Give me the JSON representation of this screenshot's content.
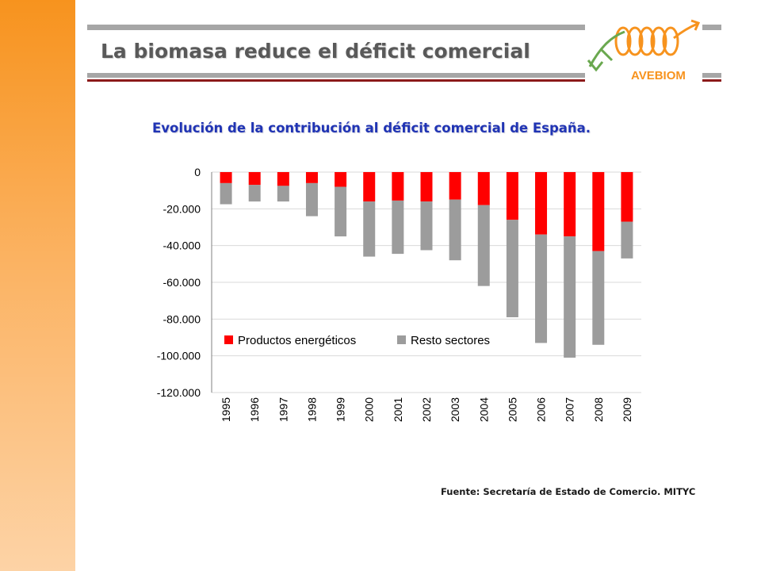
{
  "slide": {
    "title": "La biomasa reduce el déficit comercial",
    "logo_text": "AVEBIOM",
    "source": "Fuente: Secretaría de Estado de Comercio. MITYC"
  },
  "colors": {
    "sidebar": "#f7931e",
    "accent_red": "#8b1a1a",
    "heading_blue": "#2034b4",
    "series_energy": "#ff0000",
    "series_rest": "#9c9c9c",
    "logo_orange": "#f7931e",
    "logo_green": "#6aa84f"
  },
  "chart_data": {
    "type": "bar",
    "stacked": true,
    "title": "Evolución de la contribución al déficit comercial de España.",
    "categories": [
      "1995",
      "1996",
      "1997",
      "1998",
      "1999",
      "2000",
      "2001",
      "2002",
      "2003",
      "2004",
      "2005",
      "2006",
      "2007",
      "2008",
      "2009"
    ],
    "series": [
      {
        "name": "Productos energéticos",
        "color": "#ff0000",
        "values": [
          -6000,
          -7000,
          -7500,
          -6000,
          -8000,
          -16000,
          -15500,
          -16000,
          -15000,
          -18000,
          -26000,
          -34000,
          -35000,
          -43000,
          -27000
        ]
      },
      {
        "name": "Resto sectores",
        "color": "#9c9c9c",
        "values": [
          -11500,
          -9000,
          -8500,
          -18000,
          -27000,
          -30000,
          -29000,
          -26500,
          -33000,
          -44000,
          -53000,
          -59000,
          -66000,
          -51000,
          -20000
        ]
      }
    ],
    "ylim": [
      -120000,
      0
    ],
    "yticks": [
      0,
      -20000,
      -40000,
      -60000,
      -80000,
      -100000,
      -120000
    ],
    "ytick_labels": [
      "0",
      "-20.000",
      "-40.000",
      "-60.000",
      "-80.000",
      "-100.000",
      "-120.000"
    ],
    "grid": true,
    "legend": "inside-lower-left",
    "xlabel": "",
    "ylabel": ""
  }
}
